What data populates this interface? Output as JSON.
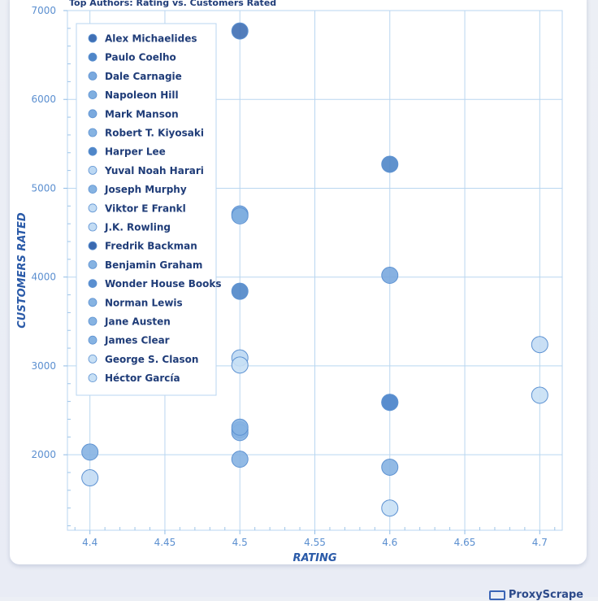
{
  "brand": {
    "name": "ProxyScrape"
  },
  "chart_data": {
    "type": "scatter",
    "title": "Top Authors: Rating vs.  Customers Rated",
    "xlabel": "RATING",
    "ylabel": "CUSTOMERS RATED",
    "xlim": [
      4.385,
      4.715
    ],
    "ylim": [
      1150,
      7000
    ],
    "xticks": [
      4.4,
      4.45,
      4.5,
      4.55,
      4.6,
      4.65,
      4.7
    ],
    "xtick_labels": [
      "4.4",
      "4.45",
      "4.5",
      "4.55",
      "4.6",
      "4.65",
      "4.7"
    ],
    "yticks": [
      2000,
      3000,
      4000,
      5000,
      6000,
      7000
    ],
    "ytick_labels": [
      "2000",
      "3000",
      "4000",
      "5000",
      "6000",
      "7000"
    ],
    "grid": true,
    "legend_position": "top-left",
    "series": [
      {
        "name": "Alex Michaelides",
        "color": "#3f6fb4",
        "points": [
          [
            4.5,
            6770
          ]
        ]
      },
      {
        "name": "Paulo Coelho",
        "color": "#4f86c8",
        "points": [
          [
            4.6,
            5270
          ]
        ]
      },
      {
        "name": "Dale Carnagie",
        "color": "#7aa9de",
        "points": [
          [
            4.5,
            4710
          ]
        ]
      },
      {
        "name": "Napoleon Hill",
        "color": "#80afe0",
        "points": [
          [
            4.5,
            4690
          ]
        ]
      },
      {
        "name": "Mark Manson",
        "color": "#7aa9de",
        "points": [
          [
            4.6,
            4020
          ]
        ]
      },
      {
        "name": "Robert T. Kiyosaki",
        "color": "#86b3e2",
        "points": [
          [
            4.5,
            2280
          ]
        ]
      },
      {
        "name": "Harper Lee",
        "color": "#4f86c8",
        "points": [
          [
            4.5,
            3840
          ]
        ]
      },
      {
        "name": "Yuval Noah Harari",
        "color": "#bcd8f3",
        "points": [
          [
            4.5,
            3090
          ]
        ]
      },
      {
        "name": "Joseph Murphy",
        "color": "#86b3e2",
        "points": [
          [
            4.5,
            1950
          ]
        ]
      },
      {
        "name": "Viktor E Frankl",
        "color": "#c3dcf4",
        "points": [
          [
            4.7,
            3240
          ]
        ]
      },
      {
        "name": "J.K. Rowling",
        "color": "#c3dcf4",
        "points": [
          [
            4.4,
            1740
          ]
        ]
      },
      {
        "name": "Fredrik Backman",
        "color": "#3a69b0",
        "points": [
          [
            4.6,
            2590
          ]
        ]
      },
      {
        "name": "Benjamin Graham",
        "color": "#86b3e2",
        "points": [
          [
            4.6,
            1860
          ]
        ]
      },
      {
        "name": "Wonder House Books",
        "color": "#5a8fd0",
        "points": [
          [
            4.6,
            2590
          ]
        ]
      },
      {
        "name": "Norman Lewis",
        "color": "#86b3e2",
        "points": [
          [
            4.5,
            2250
          ]
        ]
      },
      {
        "name": "Jane Austen",
        "color": "#86b3e2",
        "points": [
          [
            4.4,
            2030
          ]
        ]
      },
      {
        "name": "James Clear",
        "color": "#86b3e2",
        "points": [
          [
            4.5,
            2310
          ]
        ]
      },
      {
        "name": "George S. Clason",
        "color": "#c8e0f5",
        "points": [
          [
            4.5,
            3010
          ]
        ]
      },
      {
        "name": "Héctor García",
        "color": "#c8e0f5",
        "points": [
          [
            4.7,
            2670
          ],
          [
            4.6,
            1400
          ]
        ]
      }
    ]
  }
}
